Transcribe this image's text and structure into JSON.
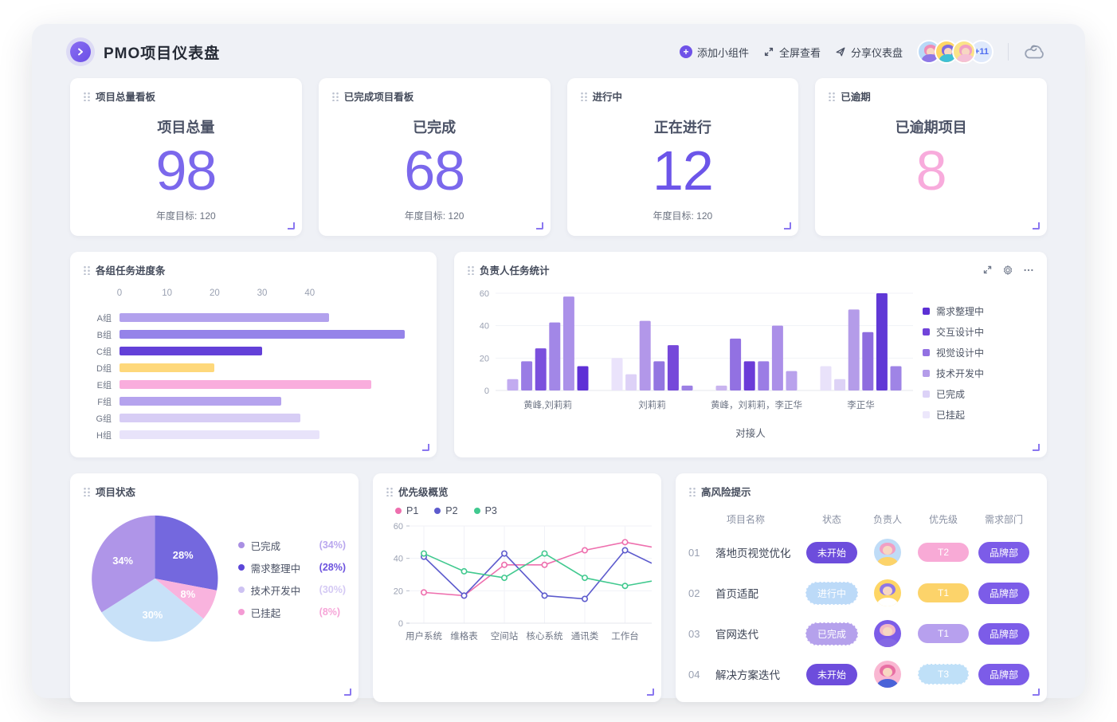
{
  "header": {
    "title": "PMO项目仪表盘",
    "actions": {
      "add": "添加小组件",
      "fullscreen": "全屏查看",
      "share": "分享仪表盘"
    },
    "extra_count": "+11",
    "avatars": [
      {
        "bg": "#b9d9f7",
        "hair": "#ef8bb6",
        "shirt": "#8f77e6"
      },
      {
        "bg": "#fed665",
        "hair": "#7d6ae0",
        "shirt": "#3ec0d6"
      },
      {
        "bg": "#fbe389",
        "hair": "#f19fc4",
        "shirt": "#f5c0d6"
      }
    ]
  },
  "widgets": {
    "stats": [
      {
        "widget_title": "项目总量看板",
        "label": "项目总量",
        "value": "98",
        "target": "年度目标: 120",
        "value_color": "#7b68ec"
      },
      {
        "widget_title": "已完成项目看板",
        "label": "已完成",
        "value": "68",
        "target": "年度目标: 120",
        "value_color": "#7b68ec"
      },
      {
        "widget_title": "进行中",
        "label": "正在进行",
        "value": "12",
        "target": "年度目标: 120",
        "value_color": "#6c55e9"
      },
      {
        "widget_title": "已逾期",
        "label": "已逾期项目",
        "value": "8",
        "target": "",
        "value_color": "#f8abdc"
      }
    ],
    "progress": {
      "title": "各组任务进度条",
      "chart_data": {
        "type": "bar",
        "orientation": "horizontal",
        "categories": [
          "A组",
          "B组",
          "C组",
          "D组",
          "E组",
          "F组",
          "G组",
          "H组"
        ],
        "values": [
          44,
          60,
          30,
          20,
          53,
          34,
          38,
          42
        ],
        "colors": [
          "#b2a1ed",
          "#9583e9",
          "#6340d8",
          "#fed87b",
          "#f9addd",
          "#b5a3ee",
          "#d7cdf5",
          "#e8e3fa"
        ],
        "ticks": [
          0,
          10,
          20,
          30,
          40
        ],
        "axis_max": 64,
        "grid": false
      }
    },
    "owner": {
      "title": "负责人任务统计",
      "chart_data": {
        "type": "bar",
        "orientation": "vertical-grouped",
        "yticks": [
          0,
          20,
          40,
          60
        ],
        "ylim": [
          0,
          60
        ],
        "xlabel": "对接人",
        "legend_position": "right",
        "legend": [
          {
            "label": "需求整理中",
            "color": "#5c30d4"
          },
          {
            "label": "交互设计中",
            "color": "#7144da"
          },
          {
            "label": "视觉设计中",
            "color": "#9271e2"
          },
          {
            "label": "技术开发中",
            "color": "#b49ce9"
          },
          {
            "label": "已完成",
            "color": "#dcd2f7"
          },
          {
            "label": "已挂起",
            "color": "#ece7fb"
          }
        ],
        "groups": [
          {
            "label": "黄峰,刘莉莉",
            "bars": [
              {
                "value": 7,
                "color": "#c2abf0"
              },
              {
                "value": 18,
                "color": "#9a7ce5"
              },
              {
                "value": 26,
                "color": "#7b50dd"
              },
              {
                "value": 42,
                "color": "#a287e7"
              },
              {
                "value": 58,
                "color": "#ab91e9"
              },
              {
                "value": 15,
                "color": "#5e2fd6"
              }
            ]
          },
          {
            "label": "刘莉莉",
            "bars": [
              {
                "value": 20,
                "color": "#eae3fb"
              },
              {
                "value": 10,
                "color": "#ddd1f7"
              },
              {
                "value": 43,
                "color": "#b297e9"
              },
              {
                "value": 18,
                "color": "#9376e1"
              },
              {
                "value": 28,
                "color": "#7648da"
              },
              {
                "value": 3,
                "color": "#9c80e4"
              }
            ]
          },
          {
            "label": "黄峰，刘莉莉，李正华",
            "bars": [
              {
                "value": 3,
                "color": "#c9b4ef"
              },
              {
                "value": 32,
                "color": "#9271e2"
              },
              {
                "value": 18,
                "color": "#6b3bd8"
              },
              {
                "value": 18,
                "color": "#9b7de5"
              },
              {
                "value": 40,
                "color": "#ab8fe8"
              },
              {
                "value": 12,
                "color": "#b9a2ec"
              }
            ]
          },
          {
            "label": "李正华",
            "bars": [
              {
                "value": 15,
                "color": "#e9e2fa"
              },
              {
                "value": 7,
                "color": "#ddd2f6"
              },
              {
                "value": 50,
                "color": "#b49ce9"
              },
              {
                "value": 36,
                "color": "#8e6ddf"
              },
              {
                "value": 60,
                "color": "#6038d6"
              },
              {
                "value": 15,
                "color": "#9f84e6"
              }
            ]
          }
        ]
      }
    },
    "status": {
      "title": "项目状态",
      "chart_data": {
        "type": "pie",
        "slices": [
          {
            "label": "需求整理中",
            "pct": 28,
            "display": "28%",
            "color": "#7468de"
          },
          {
            "label": "已挂起",
            "pct": 8,
            "display": "8%",
            "color": "#f9b3de"
          },
          {
            "label": "技术开发中",
            "pct": 30,
            "display": "30%",
            "color": "#c8e1f8"
          },
          {
            "label": "已完成",
            "pct": 34,
            "display": "34%",
            "color": "#af95e8"
          }
        ],
        "legend": [
          {
            "label": "已完成",
            "pct_text": "(34%)",
            "dot": "#a98fe3",
            "pct_color": "#b9a7ee"
          },
          {
            "label": "需求整理中",
            "pct_text": "(28%)",
            "dot": "#5b46d8",
            "pct_color": "#6c52de"
          },
          {
            "label": "技术开发中",
            "pct_text": "(30%)",
            "dot": "#cdc2f2",
            "pct_color": "#d4c9f4"
          },
          {
            "label": "已挂起",
            "pct_text": "(8%)",
            "dot": "#f49bd4",
            "pct_color": "#f6a5d8"
          }
        ]
      }
    },
    "priority": {
      "title": "优先级概览",
      "chart_data": {
        "type": "line",
        "categories": [
          "用户系统",
          "维格表",
          "空间站",
          "核心系统",
          "通讯类",
          "工作台"
        ],
        "yticks": [
          0,
          20,
          40,
          60
        ],
        "ylim": [
          0,
          60
        ],
        "grid": true,
        "series": [
          {
            "name": "P1",
            "color": "#ee6fae",
            "values": [
              19,
              17,
              36,
              36,
              45,
              50
            ],
            "edge_value": 47
          },
          {
            "name": "P2",
            "color": "#5d5bcd",
            "values": [
              41,
              17,
              43,
              17,
              15,
              45
            ],
            "edge_value": 37
          },
          {
            "name": "P3",
            "color": "#41c98f",
            "values": [
              43,
              32,
              28,
              43,
              28,
              23
            ],
            "edge_value": 26
          }
        ]
      }
    },
    "risk": {
      "title": "高风险提示",
      "columns": [
        "项目名称",
        "状态",
        "负责人",
        "优先级",
        "需求部门"
      ],
      "rows": [
        {
          "no": "01",
          "name": "落地页视觉优化",
          "status": {
            "label": "未开始",
            "bg": "#6d4ddc",
            "dashed": false
          },
          "avatar": {
            "bg": "#bfdcf7",
            "hair": "#f19fc4",
            "shirt": "#fcd36a"
          },
          "priority": {
            "label": "T2",
            "bg": "#f8aad6",
            "dashed": false
          },
          "dept": {
            "label": "品牌部",
            "bg": "#7c5ce8"
          }
        },
        {
          "no": "02",
          "name": "首页适配",
          "status": {
            "label": "进行中",
            "bg": "#bcdaf8",
            "dashed": true
          },
          "avatar": {
            "bg": "#fed665",
            "hair": "#8f77e6",
            "shirt": "#ffffff"
          },
          "priority": {
            "label": "T1",
            "bg": "#fcd36a",
            "dashed": false
          },
          "dept": {
            "label": "品牌部",
            "bg": "#7c5ce8"
          }
        },
        {
          "no": "03",
          "name": "官网迭代",
          "status": {
            "label": "已完成",
            "bg": "#b5a1ec",
            "dashed": true
          },
          "avatar": {
            "bg": "#7c5ce8",
            "hair": "#f2b8c6",
            "shirt": "#8468e4"
          },
          "priority": {
            "label": "T1",
            "bg": "#b7a0ee",
            "dashed": false
          },
          "dept": {
            "label": "品牌部",
            "bg": "#7c5ce8"
          }
        },
        {
          "no": "04",
          "name": "解决方案迭代",
          "status": {
            "label": "未开始",
            "bg": "#6d4ddc",
            "dashed": false
          },
          "avatar": {
            "bg": "#f9b7d2",
            "hair": "#e86fa4",
            "shirt": "#4a63d8"
          },
          "priority": {
            "label": "T3",
            "bg": "#bfe0f8",
            "dashed": true
          },
          "dept": {
            "label": "品牌部",
            "bg": "#7c5ce8"
          }
        }
      ]
    }
  }
}
